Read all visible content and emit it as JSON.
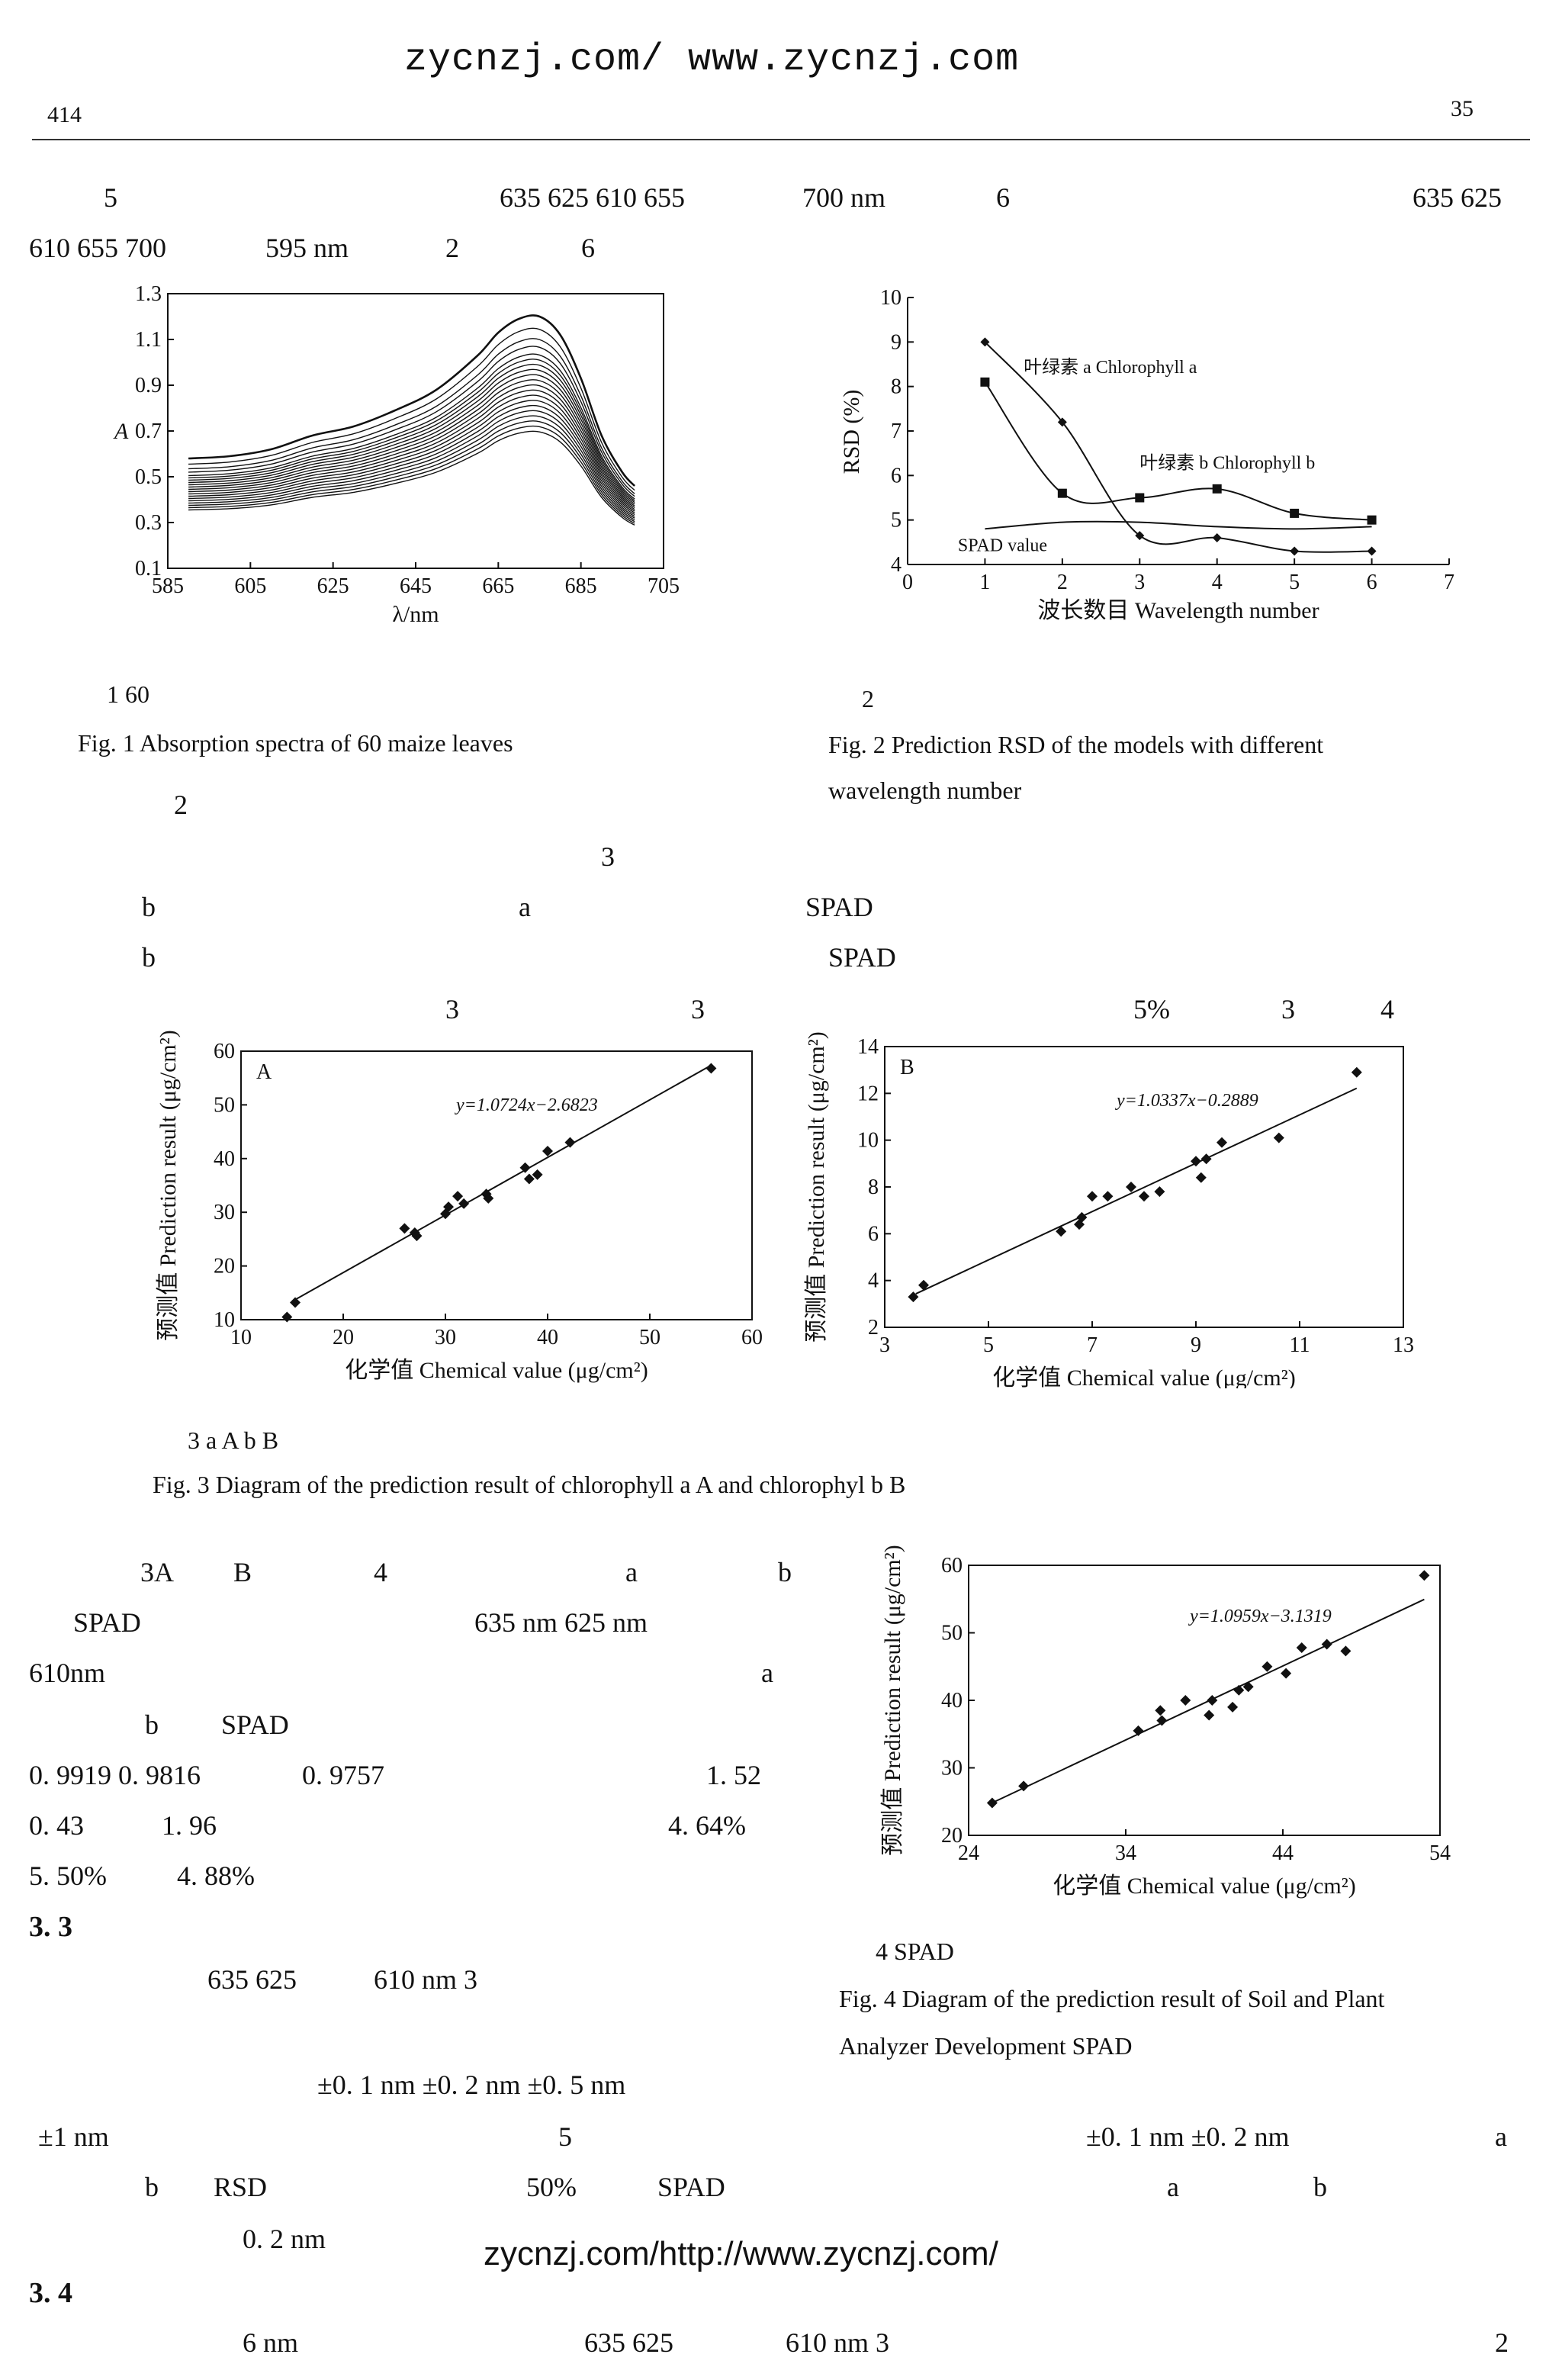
{
  "header": {
    "watermark_top": "zycnzj.com/ www.zycnzj.com",
    "page_left": "414",
    "page_right": "35",
    "watermark_bottom": "zycnzj.com/http://www.zycnzj.com/"
  },
  "text_lines": {
    "t1a": "5",
    "t1b": "635 625 610 655",
    "t1c": "700 nm",
    "t1d": "6",
    "t1e": "635 625",
    "t2a": "610 655 700",
    "t2b": "595 nm",
    "t2c": "2",
    "t2d": "6",
    "b1": "2",
    "b2": "3",
    "b3a": "b",
    "b3b": "a",
    "b3c": "SPAD",
    "b4a": "b",
    "b4b": "SPAD",
    "b5a": "3",
    "b5b": "3",
    "b5c": "5%",
    "b5d": "3",
    "b5e": "4",
    "c1a": "3A",
    "c1b": "B",
    "c1c": "4",
    "c1d": "a",
    "c1e": "b",
    "c2a": "SPAD",
    "c2b": "635  nm  625  nm",
    "c3a": "610nm",
    "c3b": "a",
    "c4a": "b",
    "c4b": "SPAD",
    "c5a": "0. 9919  0. 9816",
    "c5b": "0. 9757",
    "c5c": "1. 52",
    "c6a": "0. 43",
    "c6b": "1. 96",
    "c6c": "4. 64%",
    "c7a": "5. 50%",
    "c7b": "4. 88%",
    "s33": "3. 3",
    "c8a": "635  625",
    "c8b": "610 nm 3",
    "c9a": "±0. 1  nm   ±0. 2  nm   ±0. 5  nm",
    "c10a": "±1 nm",
    "c10b": "5",
    "c10c": "±0. 1  nm   ±0. 2  nm",
    "c10d": "a",
    "c11a": "b",
    "c11b": "RSD",
    "c11c": "50%",
    "c11d": "SPAD",
    "c11e": "a",
    "c11f": "b",
    "c12a": "0. 2  nm",
    "s34": "3. 4",
    "c13a": "6  nm",
    "c13b": "635  625",
    "c13c": "610 nm 3",
    "c13d": "2"
  },
  "captions": {
    "fig1_cn": "1   60",
    "fig1_en": "Fig. 1     Absorption spectra of 60 maize leaves",
    "fig2_cn": "2",
    "fig2_en_1": "Fig. 2      Prediction      RSD      of the models with different",
    "fig2_en_2": "wavelength number",
    "fig3_cn": "3                 a   A                       b   B",
    "fig3_en": "Fig. 3     Diagram of the prediction result of chlorophyll a    A     and chlorophyl b    B",
    "fig4_cn": "4    SPAD",
    "fig4_en_1": "Fig. 4     Diagram of the prediction result of Soil and Plant",
    "fig4_en_2": "Analyzer Development    SPAD"
  },
  "chart_data": [
    {
      "id": "fig1",
      "type": "line",
      "title": "",
      "xlabel": "λ/nm",
      "ylabel": "A",
      "xlim": [
        585,
        705
      ],
      "ylim": [
        0.1,
        1.3
      ],
      "x_ticks": [
        "585",
        "605",
        "625",
        "645",
        "665",
        "685",
        "705"
      ],
      "y_ticks": [
        "0.1",
        "0.3",
        "0.5",
        "0.7",
        "0.9",
        "1.1",
        "1.3"
      ],
      "x": [
        590,
        600,
        610,
        620,
        630,
        640,
        650,
        660,
        665,
        670,
        675,
        680,
        685,
        690,
        695,
        698
      ],
      "base_curve": [
        0.58,
        0.59,
        0.62,
        0.68,
        0.72,
        0.79,
        0.88,
        1.03,
        1.13,
        1.19,
        1.2,
        1.12,
        0.93,
        0.68,
        0.52,
        0.46
      ],
      "series_count": 20,
      "series_scales": [
        1.0,
        0.95,
        0.91,
        0.88,
        0.85,
        0.83,
        0.81,
        0.79,
        0.77,
        0.75,
        0.73,
        0.71,
        0.69,
        0.67,
        0.65,
        0.63,
        0.61,
        0.59,
        0.57,
        0.55
      ]
    },
    {
      "id": "fig2",
      "type": "line",
      "xlabel": "波长数目 Wavelength number",
      "ylabel": "RSD (%)",
      "xlim": [
        0,
        7
      ],
      "ylim": [
        4,
        10
      ],
      "x_ticks": [
        "0",
        "1",
        "2",
        "3",
        "4",
        "5",
        "6",
        "7"
      ],
      "y_ticks": [
        "4",
        "5",
        "6",
        "7",
        "8",
        "9",
        "10"
      ],
      "series": [
        {
          "name": "叶绿素 a  Chlorophyll a",
          "marker": "diamond",
          "x": [
            1,
            2,
            3,
            4,
            5,
            6
          ],
          "values": [
            9.0,
            7.2,
            4.65,
            4.6,
            4.3,
            4.3
          ]
        },
        {
          "name": "叶绿素 b  Chlorophyll b",
          "marker": "square",
          "x": [
            1,
            2,
            3,
            4,
            5,
            6
          ],
          "values": [
            8.1,
            5.6,
            5.5,
            5.7,
            5.15,
            5.0
          ]
        },
        {
          "name": "SPAD value",
          "marker": "none",
          "x": [
            1,
            2,
            3,
            4,
            5,
            6
          ],
          "values": [
            4.8,
            4.95,
            4.95,
            4.85,
            4.8,
            4.85
          ]
        }
      ]
    },
    {
      "id": "fig3a",
      "type": "scatter",
      "panel_label": "A",
      "equation": "y=1.0724x−2.6823",
      "xlabel": "化学值 Chemical value (μg/cm²)",
      "ylabel": "预测值 Prediction result (μg/cm²)",
      "xlim": [
        10,
        60
      ],
      "ylim": [
        10,
        60
      ],
      "x_ticks": [
        "10",
        "20",
        "30",
        "40",
        "50",
        "60"
      ],
      "y_ticks": [
        "10",
        "20",
        "30",
        "40",
        "50",
        "60"
      ],
      "fit": [
        1.0724,
        -2.6823
      ],
      "fit_range": [
        15,
        56
      ],
      "points_x": [
        14.5,
        15.3,
        26,
        27,
        27.2,
        30,
        30.3,
        31.2,
        31.8,
        34,
        34.2,
        37.8,
        38.2,
        39,
        40,
        42.2,
        56
      ],
      "points_y": [
        10.5,
        13.2,
        27,
        26.2,
        25.6,
        29.7,
        31,
        33,
        31.6,
        33.4,
        32.6,
        38.3,
        36.2,
        37,
        41.4,
        43,
        56.8
      ]
    },
    {
      "id": "fig3b",
      "type": "scatter",
      "panel_label": "B",
      "equation": "y=1.0337x−0.2889",
      "xlabel": "化学值 Chemical value (μg/cm²)",
      "ylabel": "预测值 Prediction result (μg/cm²)",
      "xlim": [
        3,
        13
      ],
      "ylim": [
        2,
        14
      ],
      "x_ticks": [
        "3",
        "5",
        "7",
        "9",
        "11",
        "13"
      ],
      "y_ticks": [
        "2",
        "4",
        "6",
        "8",
        "10",
        "12",
        "14"
      ],
      "fit": [
        1.0337,
        -0.2889
      ],
      "fit_range": [
        3.6,
        12.1
      ],
      "points_x": [
        3.55,
        3.75,
        6.4,
        6.75,
        6.8,
        7.0,
        7.3,
        7.75,
        8.0,
        8.3,
        9.0,
        9.1,
        9.2,
        9.5,
        10.6,
        12.1
      ],
      "points_y": [
        3.3,
        3.8,
        6.1,
        6.4,
        6.7,
        7.6,
        7.6,
        8.0,
        7.6,
        7.8,
        9.1,
        8.4,
        9.2,
        9.9,
        10.1,
        12.9
      ]
    },
    {
      "id": "fig4",
      "type": "scatter",
      "equation": "y=1.0959x−3.1319",
      "xlabel": "化学值 Chemical value (μg/cm²)",
      "ylabel": "预测值 Prediction result (μg/cm²)",
      "xlim": [
        24,
        54
      ],
      "ylim": [
        20,
        60
      ],
      "x_ticks": [
        "24",
        "34",
        "44",
        "54"
      ],
      "y_ticks": [
        "20",
        "30",
        "40",
        "50",
        "60"
      ],
      "fit": [
        1.0959,
        -3.1319
      ],
      "fit_range": [
        25.5,
        53
      ],
      "points_x": [
        25.5,
        27.5,
        34.8,
        36.2,
        36.3,
        37.8,
        39.3,
        39.5,
        40.8,
        41.2,
        41.8,
        43.0,
        44.2,
        45.2,
        46.8,
        48.0,
        53
      ],
      "points_y": [
        24.8,
        27.3,
        35.5,
        38.5,
        37.0,
        40.0,
        37.8,
        40.0,
        39.0,
        41.5,
        42.0,
        45.0,
        44.0,
        47.8,
        48.3,
        47.3,
        58.5
      ]
    }
  ]
}
